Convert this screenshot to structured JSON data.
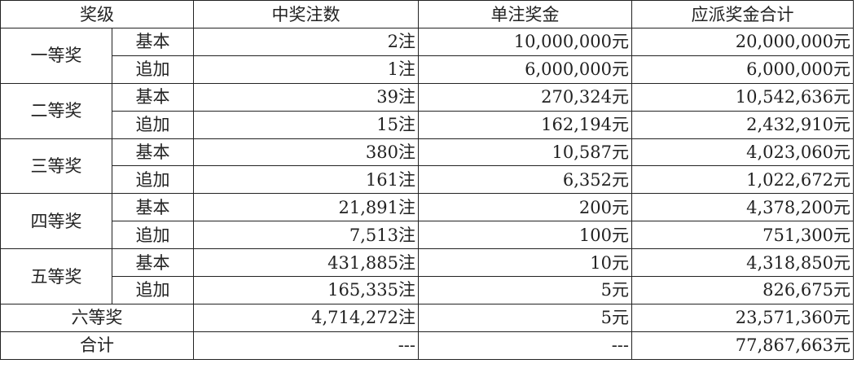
{
  "header": [
    "奖级",
    "中奖注数",
    "单注奖金",
    "应派奖金合计"
  ],
  "prizes": [
    {
      "level": "一等奖",
      "rows": [
        {
          "type": "基本",
          "count": "2注",
          "unit": "10,000,000元",
          "total": "20,000,000元"
        },
        {
          "type": "追加",
          "count": "1注",
          "unit": "6,000,000元",
          "total": "6,000,000元"
        }
      ]
    },
    {
      "level": "二等奖",
      "rows": [
        {
          "type": "基本",
          "count": "39注",
          "unit": "270,324元",
          "total": "10,542,636元"
        },
        {
          "type": "追加",
          "count": "15注",
          "unit": "162,194元",
          "total": "2,432,910元"
        }
      ]
    },
    {
      "level": "三等奖",
      "rows": [
        {
          "type": "基本",
          "count": "380注",
          "unit": "10,587元",
          "total": "4,023,060元"
        },
        {
          "type": "追加",
          "count": "161注",
          "unit": "6,352元",
          "total": "1,022,672元"
        }
      ]
    },
    {
      "level": "四等奖",
      "rows": [
        {
          "type": "基本",
          "count": "21,891注",
          "unit": "200元",
          "total": "4,378,200元"
        },
        {
          "type": "追加",
          "count": "7,513注",
          "unit": "100元",
          "total": "751,300元"
        }
      ]
    },
    {
      "level": "五等奖",
      "rows": [
        {
          "type": "基本",
          "count": "431,885注",
          "unit": "10元",
          "total": "4,318,850元"
        },
        {
          "type": "追加",
          "count": "165,335注",
          "unit": "5元",
          "total": "826,675元"
        }
      ]
    }
  ],
  "sixth": {
    "level": "六等奖",
    "count": "4,714,272注",
    "unit": "5元",
    "total": "23,571,360元"
  },
  "sum": {
    "label": "合计",
    "count": "---",
    "unit": "---",
    "total": "77,867,663元"
  }
}
